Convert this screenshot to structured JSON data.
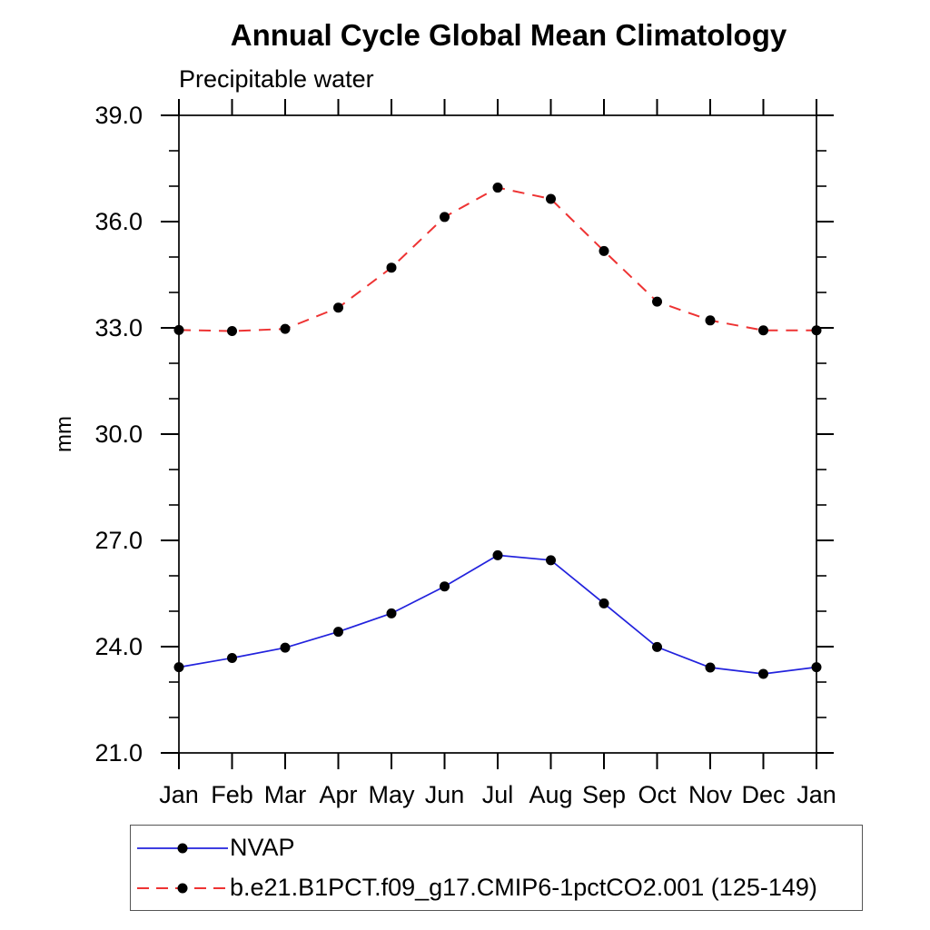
{
  "chart_data": {
    "type": "line",
    "title": "Annual Cycle Global Mean Climatology",
    "subtitle": "Precipitable water",
    "ylabel": "mm",
    "x_categories": [
      "Jan",
      "Feb",
      "Mar",
      "Apr",
      "May",
      "Jun",
      "Jul",
      "Aug",
      "Sep",
      "Oct",
      "Nov",
      "Dec",
      "Jan"
    ],
    "ylim": [
      21.0,
      39.0
    ],
    "ytick_major_values": [
      21,
      24,
      27,
      30,
      33,
      36,
      39
    ],
    "ytick_major_labels": [
      "21.0",
      "24.0",
      "27.0",
      "30.0",
      "33.0",
      "36.0",
      "39.0"
    ],
    "ytick_minor_step": 1,
    "grid": false,
    "legend_position": "bottom-left",
    "axis_color": "#000000",
    "series": [
      {
        "name": "NVAP",
        "line_style": "solid",
        "color": "#2222dd",
        "marker": "filled-circle",
        "marker_color": "#000000",
        "values": [
          23.42,
          23.68,
          23.97,
          24.42,
          24.94,
          25.7,
          26.58,
          26.44,
          25.22,
          23.99,
          23.41,
          23.23,
          23.42
        ]
      },
      {
        "name": "b.e21.B1PCT.f09_g17.CMIP6-1pctCO2.001 (125-149)",
        "line_style": "dashed",
        "color": "#ee3333",
        "marker": "filled-circle",
        "marker_color": "#000000",
        "values": [
          32.94,
          32.91,
          32.97,
          33.57,
          34.7,
          36.13,
          36.96,
          36.64,
          35.17,
          33.74,
          33.21,
          32.93,
          32.93
        ]
      }
    ]
  }
}
